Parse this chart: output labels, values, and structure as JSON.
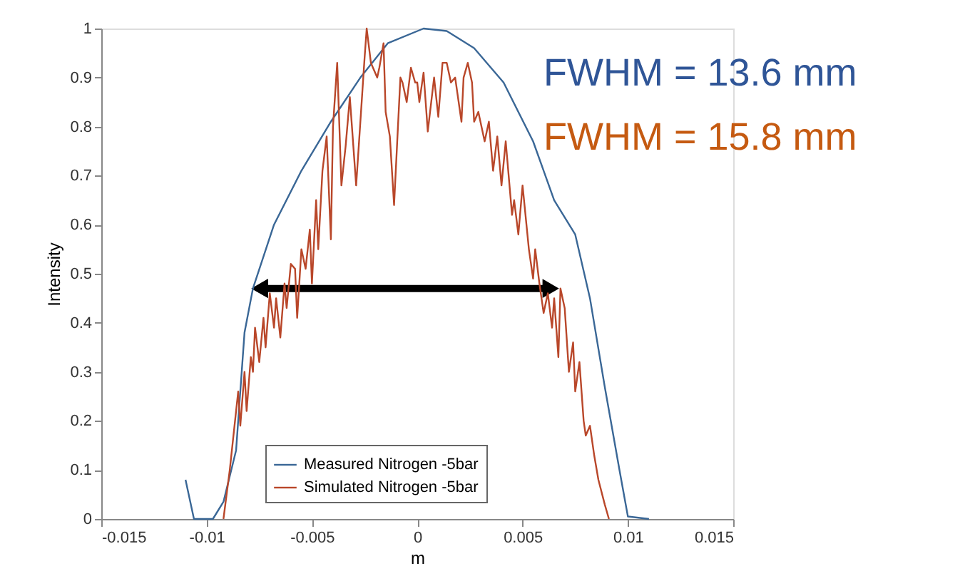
{
  "chart_data": {
    "type": "line",
    "xlabel": "m",
    "ylabel": "Intensity",
    "xlim": [
      -0.015,
      0.015
    ],
    "ylim": [
      0,
      1
    ],
    "xticks": [
      -0.015,
      -0.01,
      -0.005,
      0,
      0.005,
      0.01,
      0.015
    ],
    "yticks": [
      0,
      0.1,
      0.2,
      0.3,
      0.4,
      0.5,
      0.6,
      0.7,
      0.8,
      0.9,
      1
    ],
    "grid": false,
    "legend": "bottom",
    "marker": "none",
    "line_style": "solid",
    "annotations": [
      "FWHM = 13.6 mm",
      "FWHM = 15.8 mm"
    ],
    "series": [
      {
        "name": "Measured Nitrogen -5bar",
        "color": "#3a6796",
        "x": [
          -0.011,
          -0.0106,
          -0.0097,
          -0.0092,
          -0.0086,
          -0.0082,
          -0.0078,
          -0.0068,
          -0.0055,
          -0.0041,
          -0.0027,
          -0.0014,
          0.0003,
          0.0014,
          0.0027,
          0.0041,
          0.0055,
          0.0065,
          0.0075,
          0.0082,
          0.0089,
          0.0096,
          0.01,
          0.011
        ],
        "values": [
          0.08,
          0,
          0,
          0.035,
          0.14,
          0.38,
          0.47,
          0.6,
          0.71,
          0.81,
          0.9,
          0.97,
          1.0,
          0.995,
          0.96,
          0.89,
          0.77,
          0.65,
          0.58,
          0.45,
          0.27,
          0.1,
          0.005,
          0
        ]
      },
      {
        "name": "Simulated Nitrogen -5bar",
        "color": "#b9472a",
        "x": [
          -0.0092,
          -0.0089,
          -0.0087,
          -0.0085,
          -0.0084,
          -0.0082,
          -0.0081,
          -0.0079,
          -0.0078,
          -0.0077,
          -0.0075,
          -0.0073,
          -0.0072,
          -0.007,
          -0.0068,
          -0.0067,
          -0.0065,
          -0.0063,
          -0.0062,
          -0.006,
          -0.0058,
          -0.0057,
          -0.0055,
          -0.0053,
          -0.0051,
          -0.005,
          -0.0048,
          -0.0047,
          -0.0045,
          -0.0043,
          -0.0041,
          -0.004,
          -0.0038,
          -0.0036,
          -0.0034,
          -0.0032,
          -0.0029,
          -0.0027,
          -0.0025,
          -0.0024,
          -0.0022,
          -0.0019,
          -0.0018,
          -0.0016,
          -0.0015,
          -0.0013,
          -0.0011,
          -0.0008,
          -0.0007,
          -0.0005,
          -0.0003,
          -0.0001,
          0,
          0.0001,
          0.0003,
          0.0005,
          0.0008,
          0.001,
          0.0012,
          0.0014,
          0.0016,
          0.0018,
          0.0021,
          0.0022,
          0.0024,
          0.0026,
          0.0027,
          0.0029,
          0.0032,
          0.0034,
          0.0036,
          0.0038,
          0.004,
          0.0042,
          0.0045,
          0.0046,
          0.0048,
          0.005,
          0.0053,
          0.0055,
          0.0056,
          0.0058,
          0.006,
          0.0062,
          0.0064,
          0.0065,
          0.0067,
          0.0068,
          0.007,
          0.0072,
          0.0074,
          0.0075,
          0.0077,
          0.0079,
          0.008,
          0.0082,
          0.0084,
          0.0086,
          0.0089,
          0.0091
        ],
        "values": [
          0,
          0.1,
          0.18,
          0.26,
          0.19,
          0.3,
          0.22,
          0.33,
          0.3,
          0.39,
          0.32,
          0.41,
          0.35,
          0.46,
          0.39,
          0.45,
          0.37,
          0.48,
          0.43,
          0.52,
          0.51,
          0.41,
          0.55,
          0.51,
          0.59,
          0.48,
          0.65,
          0.55,
          0.71,
          0.78,
          0.57,
          0.8,
          0.93,
          0.68,
          0.76,
          0.86,
          0.68,
          0.81,
          0.94,
          1.0,
          0.93,
          0.9,
          0.92,
          0.97,
          0.83,
          0.78,
          0.64,
          0.9,
          0.89,
          0.85,
          0.92,
          0.89,
          0.89,
          0.85,
          0.91,
          0.79,
          0.9,
          0.82,
          0.93,
          0.93,
          0.89,
          0.9,
          0.81,
          0.9,
          0.93,
          0.89,
          0.81,
          0.83,
          0.77,
          0.81,
          0.71,
          0.78,
          0.68,
          0.77,
          0.62,
          0.65,
          0.58,
          0.68,
          0.55,
          0.49,
          0.55,
          0.48,
          0.42,
          0.46,
          0.39,
          0.45,
          0.33,
          0.47,
          0.43,
          0.3,
          0.36,
          0.26,
          0.32,
          0.2,
          0.17,
          0.19,
          0.13,
          0.08,
          0.03,
          0
        ]
      }
    ]
  }
}
